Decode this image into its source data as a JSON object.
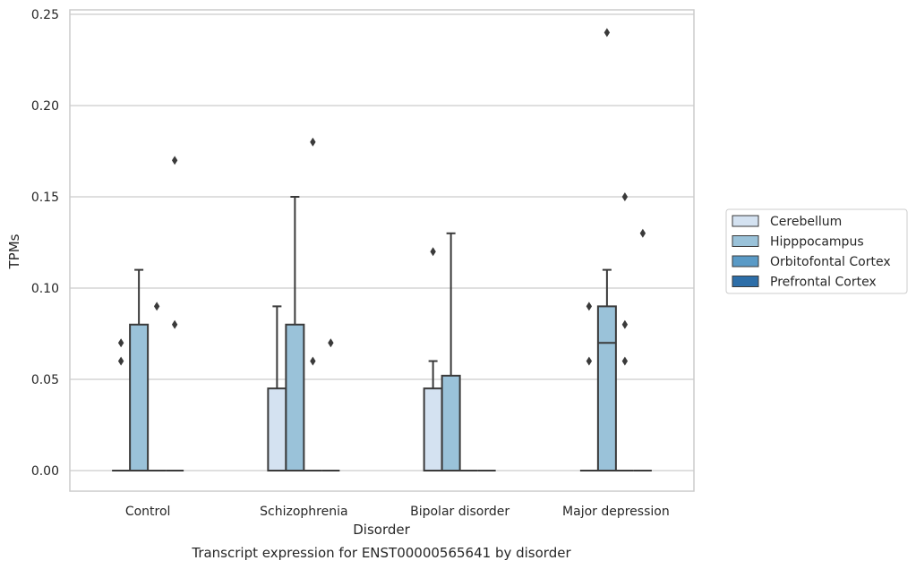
{
  "chart_data": {
    "type": "box",
    "caption": "Transcript expression for ENST00000565641 by disorder",
    "xlabel": "Disorder",
    "ylabel": "TPMs",
    "ylim": [
      -0.012,
      0.252
    ],
    "yticks": [
      "0.00",
      "0.05",
      "0.10",
      "0.15",
      "0.20",
      "0.25"
    ],
    "grid": true,
    "legend_position": "right",
    "categories": [
      "Control",
      "Schizophrenia",
      "Bipolar disorder",
      "Major depression"
    ],
    "series": [
      {
        "name": "Cerebellum",
        "color": "#d4e2f1",
        "boxes": [
          {
            "q1": 0,
            "median": 0,
            "q3": 0,
            "whisker_low": 0,
            "whisker_high": 0,
            "outliers": [
              0.06,
              0.07
            ]
          },
          {
            "q1": 0,
            "median": 0,
            "q3": 0.045,
            "whisker_low": 0,
            "whisker_high": 0.09,
            "outliers": []
          },
          {
            "q1": 0,
            "median": 0,
            "q3": 0.045,
            "whisker_low": 0,
            "whisker_high": 0.06,
            "outliers": [
              0.12
            ]
          },
          {
            "q1": 0,
            "median": 0,
            "q3": 0,
            "whisker_low": 0,
            "whisker_high": 0,
            "outliers": [
              0.06,
              0.09
            ]
          }
        ]
      },
      {
        "name": "Hipppocampus",
        "color": "#9ac2d9",
        "boxes": [
          {
            "q1": 0,
            "median": 0,
            "q3": 0.08,
            "whisker_low": 0,
            "whisker_high": 0.11,
            "outliers": []
          },
          {
            "q1": 0,
            "median": 0,
            "q3": 0.08,
            "whisker_low": 0,
            "whisker_high": 0.15,
            "outliers": []
          },
          {
            "q1": 0,
            "median": 0,
            "q3": 0.052,
            "whisker_low": 0,
            "whisker_high": 0.13,
            "outliers": []
          },
          {
            "q1": 0,
            "median": 0.07,
            "q3": 0.09,
            "whisker_low": 0,
            "whisker_high": 0.11,
            "outliers": [
              0.24
            ]
          }
        ]
      },
      {
        "name": "Orbitofontal Cortex",
        "color": "#5a9ac6",
        "boxes": [
          {
            "q1": 0,
            "median": 0,
            "q3": 0,
            "whisker_low": 0,
            "whisker_high": 0,
            "outliers": [
              0.09
            ]
          },
          {
            "q1": 0,
            "median": 0,
            "q3": 0,
            "whisker_low": 0,
            "whisker_high": 0,
            "outliers": [
              0.06,
              0.18
            ]
          },
          {
            "q1": 0,
            "median": 0,
            "q3": 0,
            "whisker_low": 0,
            "whisker_high": 0,
            "outliers": []
          },
          {
            "q1": 0,
            "median": 0,
            "q3": 0,
            "whisker_low": 0,
            "whisker_high": 0,
            "outliers": [
              0.06,
              0.08,
              0.15
            ]
          }
        ]
      },
      {
        "name": "Prefrontal Cortex",
        "color": "#2d6ea8",
        "boxes": [
          {
            "q1": 0,
            "median": 0,
            "q3": 0,
            "whisker_low": 0,
            "whisker_high": 0,
            "outliers": [
              0.08,
              0.17
            ]
          },
          {
            "q1": 0,
            "median": 0,
            "q3": 0,
            "whisker_low": 0,
            "whisker_high": 0,
            "outliers": [
              0.07
            ]
          },
          {
            "q1": 0,
            "median": 0,
            "q3": 0,
            "whisker_low": 0,
            "whisker_high": 0,
            "outliers": []
          },
          {
            "q1": 0,
            "median": 0,
            "q3": 0,
            "whisker_low": 0,
            "whisker_high": 0,
            "outliers": [
              0.13
            ]
          }
        ]
      }
    ]
  }
}
